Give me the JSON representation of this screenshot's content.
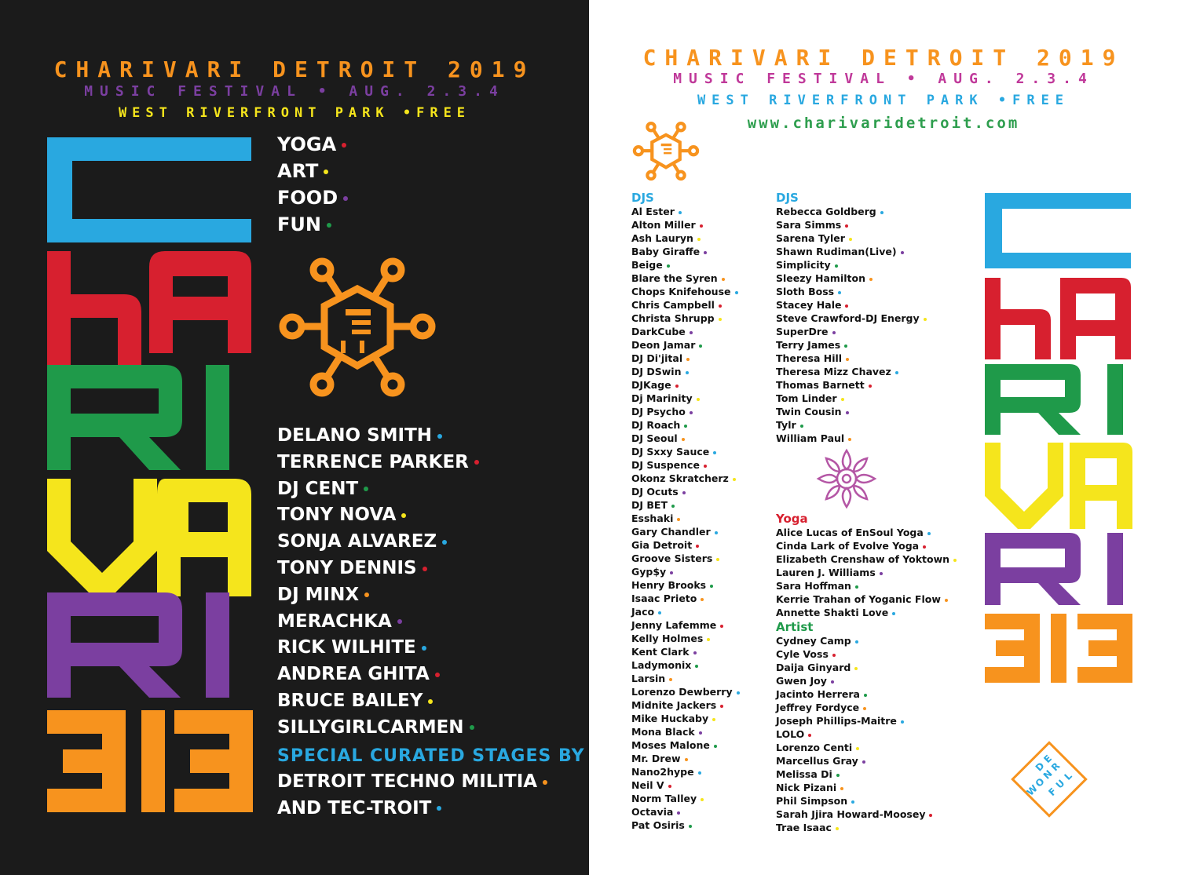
{
  "colors": {
    "orange": "#f7931e",
    "purple": "#7b3fa0",
    "yellow": "#f5e51c",
    "blue": "#29a8e0",
    "red": "#d7202f",
    "green": "#1f9a4a",
    "magenta": "#c0399a",
    "brand_green": "#2e9e4e",
    "lotus": "#b456a5"
  },
  "dot_cycle": [
    "#29a8e0",
    "#d7202f",
    "#f5e51c",
    "#7b3fa0",
    "#1f9a4a",
    "#f7931e"
  ],
  "left": {
    "header": {
      "title": "CHARIVARI DETROIT 2019",
      "subtitle": "MUSIC FESTIVAL • AUG. 2.3.4",
      "location": "WEST RIVERFRONT PARK •FREE"
    },
    "big_word": {
      "rows": [
        "C",
        "hA",
        "RI",
        "VA",
        "RI",
        "313"
      ]
    },
    "activities": [
      {
        "label": "YOGA",
        "dot": "#d7202f"
      },
      {
        "label": "ART",
        "dot": "#f5e51c"
      },
      {
        "label": "FOOD",
        "dot": "#7b3fa0"
      },
      {
        "label": "FUN",
        "dot": "#1f9a4a"
      }
    ],
    "icon": "hexagon-mascot-icon",
    "headliners": [
      {
        "label": "DELANO SMITH",
        "dot": "#29a8e0"
      },
      {
        "label": "TERRENCE PARKER",
        "dot": "#d7202f"
      },
      {
        "label": "DJ CENT",
        "dot": "#1f9a4a"
      },
      {
        "label": "TONY NOVA",
        "dot": "#f5e51c"
      },
      {
        "label": "SONJA ALVAREZ",
        "dot": "#29a8e0"
      },
      {
        "label": "TONY DENNIS",
        "dot": "#d7202f"
      },
      {
        "label": "DJ MINX",
        "dot": "#f7931e"
      },
      {
        "label": "MERACHKA",
        "dot": "#7b3fa0"
      },
      {
        "label": "RICK WILHITE",
        "dot": "#29a8e0"
      },
      {
        "label": "ANDREA GHITA",
        "dot": "#d7202f"
      },
      {
        "label": "BRUCE BAILEY",
        "dot": "#f5e51c"
      },
      {
        "label": "SILLYGIRLCARMEN",
        "dot": "#1f9a4a"
      }
    ],
    "special_label": "SPECIAL CURATED STAGES BY",
    "special": [
      {
        "label": "DETROIT TECHNO MILITIA",
        "dot": "#f7931e"
      },
      {
        "label": "AND TEC-TROIT",
        "dot": "#29a8e0"
      }
    ]
  },
  "right": {
    "header": {
      "title": "CHARIVARI DETROIT 2019",
      "subtitle": "MUSIC FESTIVAL • AUG. 2.3.4",
      "location": "WEST RIVERFRONT PARK •FREE",
      "url": "www.charivaridetroit.com"
    },
    "icon": "hexagon-mascot-icon",
    "lotus_icon": "lotus-mandala-icon",
    "badge_text": [
      "W",
      "O",
      "N",
      "D",
      "E",
      "R",
      "F",
      "U",
      "L"
    ],
    "col1_title": "DJS",
    "col1": [
      "Al Ester",
      "Alton Miller",
      "Ash Lauryn",
      "Baby Giraffe",
      "Beige",
      "Blare the Syren",
      "Chops Knifehouse",
      "Chris Campbell",
      "Christa Shrupp",
      "DarkCube",
      "Deon Jamar",
      "DJ Di'jital",
      "DJ DSwin",
      "DJKage",
      "Dj Marinity",
      "DJ Psycho",
      "DJ Roach",
      "DJ Seoul",
      "DJ Sxxy Sauce",
      "DJ Suspence",
      "Okonz Skratcherz",
      "DJ Ocuts",
      "DJ BET",
      "Esshaki",
      "Gary Chandler",
      "Gia Detroit",
      "Groove Sisters",
      "Gyp$y",
      "Henry Brooks",
      "Isaac Prieto",
      "Jaco",
      "Jenny Lafemme",
      "Kelly Holmes",
      "Kent Clark",
      "Ladymonix",
      "Larsin",
      "Lorenzo Dewberry",
      "Midnite Jackers",
      "Mike Huckaby",
      "Mona Black",
      "Moses Malone",
      "Mr. Drew",
      "Nano2hype",
      "Neil V",
      "Norm Talley",
      "Octavia",
      "Pat Osiris"
    ],
    "col2_title": "DJS",
    "col2": [
      "Rebecca Goldberg",
      "Sara Simms",
      "Sarena Tyler",
      "Shawn Rudiman(Live)",
      "Simplicity",
      "Sleezy Hamilton",
      "Sloth Boss",
      "Stacey Hale",
      "Steve Crawford-DJ Energy",
      "SuperDre",
      "Terry James",
      "Theresa Hill",
      "Theresa Mizz Chavez",
      "Thomas Barnett",
      "Tom Linder",
      "Twin Cousin",
      "Tylr",
      "William Paul"
    ],
    "yoga_title": "Yoga",
    "yoga": [
      "Alice Lucas of EnSoul Yoga",
      "Cinda Lark of Evolve Yoga",
      "Elizabeth Crenshaw of Yoktown",
      "Lauren J. Williams",
      "Sara Hoffman",
      "Kerrie Trahan of Yoganic Flow",
      "Annette Shakti Love"
    ],
    "artist_title": "Artist",
    "artist": [
      "Cydney Camp",
      "Cyle Voss",
      "Daija Ginyard",
      "Gwen Joy",
      "Jacinto Herrera",
      "Jeffrey Fordyce",
      "Joseph Phillips-Maitre",
      "LOLO",
      "Lorenzo Centi",
      "Marcellus Gray",
      "Melissa Di",
      "Nick Pizani",
      "Phil Simpson",
      "Sarah Jjira Howard-Moosey",
      "Trae Isaac"
    ]
  }
}
